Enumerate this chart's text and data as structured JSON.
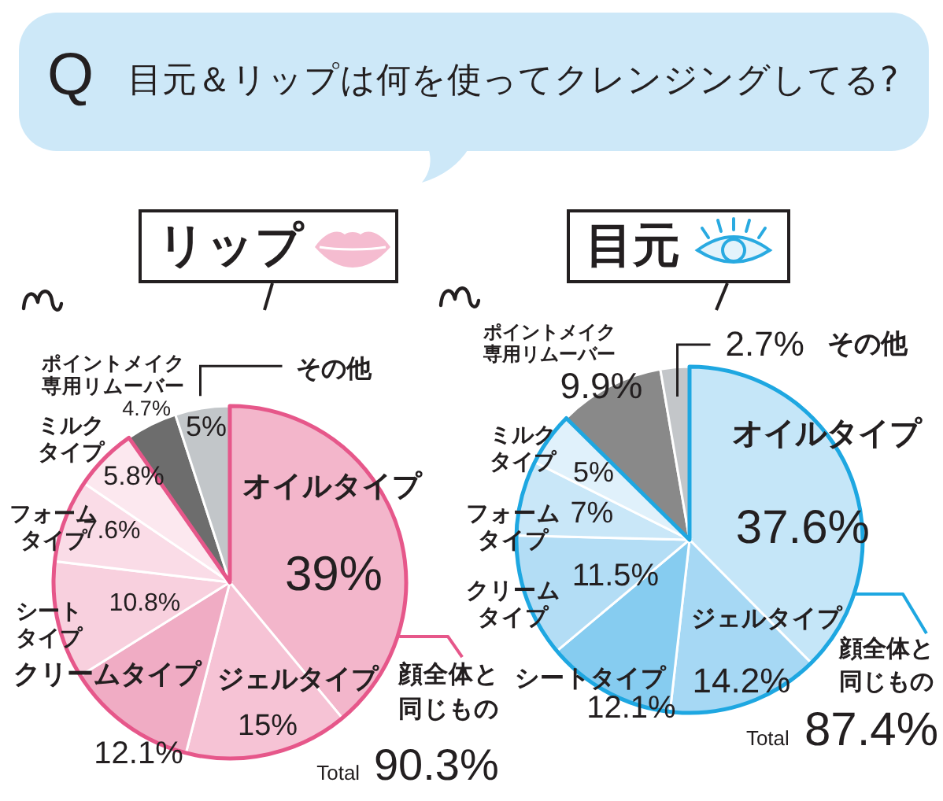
{
  "chart_data": [
    {
      "type": "other",
      "title": "目元＆リップは何を使ってクレンジングしてる?",
      "annotations": [
        "Q"
      ]
    },
    {
      "type": "pie",
      "title": "リップ",
      "categories": [
        "オイルタイプ",
        "ジェルタイプ",
        "クリームタイプ",
        "シートタイプ",
        "フォームタイプ",
        "ミルクタイプ",
        "ポイントメイク専用リムーバー",
        "その他"
      ],
      "values": [
        39,
        15,
        12.1,
        10.8,
        7.6,
        5.8,
        4.7,
        5
      ],
      "value_labels": [
        "39%",
        "15%",
        "12.1%",
        "10.8%",
        "7.6%",
        "5.8%",
        "4.7%",
        "5%"
      ],
      "colors": [
        "#f3b6cb",
        "#f6c3d5",
        "#f0acc4",
        "#f8d0de",
        "#fadce7",
        "#fce8ef",
        "#6d6d6d",
        "#c2c6c9"
      ],
      "annotations": [
        "顔全体と同じもの",
        "Total 90.3%"
      ]
    },
    {
      "type": "pie",
      "title": "目元",
      "categories": [
        "オイルタイプ",
        "ジェルタイプ",
        "シートタイプ",
        "クリームタイプ",
        "フォームタイプ",
        "ミルクタイプ",
        "ポイントメイク専用リムーバー",
        "その他"
      ],
      "values": [
        37.6,
        14.2,
        12.1,
        11.5,
        7,
        5,
        9.9,
        2.7
      ],
      "value_labels": [
        "37.6%",
        "14.2%",
        "12.1%",
        "11.5%",
        "7%",
        "5%",
        "9.9%",
        "2.7%"
      ],
      "colors": [
        "#c5e6f8",
        "#a6d8f4",
        "#86ccf0",
        "#b3ddf5",
        "#c9e7f8",
        "#e0f1fb",
        "#898989",
        "#c3c6c9"
      ],
      "annotations": [
        "顔全体と同じもの",
        "Total 87.4%"
      ]
    }
  ]
}
